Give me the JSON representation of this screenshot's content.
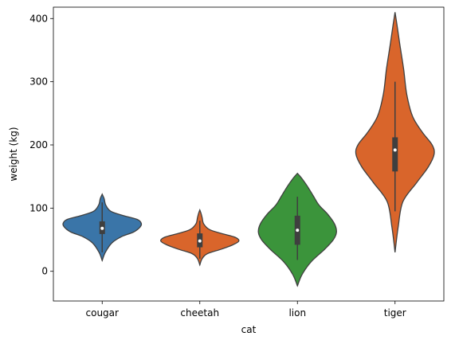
{
  "chart_data": {
    "type": "violin",
    "xlabel": "cat",
    "ylabel": "weight (kg)",
    "ylim": [
      -47,
      418
    ],
    "yticks": [
      0,
      100,
      200,
      300,
      400
    ],
    "categories": [
      "cougar",
      "cheetah",
      "lion",
      "tiger"
    ],
    "violins": [
      {
        "category": "cougar",
        "color": "#3a75a8",
        "min": 17,
        "max": 122,
        "q1": 59,
        "median": 68,
        "q3": 79,
        "whisker_low": 30,
        "whisker_high": 109,
        "density": [
          [
            17,
            0.0
          ],
          [
            30,
            0.08
          ],
          [
            45,
            0.25
          ],
          [
            55,
            0.5
          ],
          [
            62,
            0.8
          ],
          [
            70,
            0.97
          ],
          [
            76,
            1.0
          ],
          [
            82,
            0.9
          ],
          [
            88,
            0.55
          ],
          [
            95,
            0.22
          ],
          [
            105,
            0.09
          ],
          [
            115,
            0.05
          ],
          [
            122,
            0.0
          ]
        ]
      },
      {
        "category": "cheetah",
        "color": "#d9652b",
        "min": 10,
        "max": 97,
        "q1": 38,
        "median": 48,
        "q3": 60,
        "whisker_low": 20,
        "whisker_high": 80,
        "density": [
          [
            10,
            0.0
          ],
          [
            20,
            0.06
          ],
          [
            28,
            0.2
          ],
          [
            35,
            0.55
          ],
          [
            42,
            0.85
          ],
          [
            48,
            1.0
          ],
          [
            54,
            0.9
          ],
          [
            60,
            0.55
          ],
          [
            66,
            0.25
          ],
          [
            75,
            0.1
          ],
          [
            85,
            0.06
          ],
          [
            92,
            0.03
          ],
          [
            97,
            0.0
          ]
        ]
      },
      {
        "category": "lion",
        "color": "#3b943b",
        "min": -23,
        "max": 155,
        "q1": 42,
        "median": 65,
        "q3": 88,
        "whisker_low": 18,
        "whisker_high": 118,
        "density": [
          [
            -23,
            0.0
          ],
          [
            -5,
            0.12
          ],
          [
            15,
            0.35
          ],
          [
            35,
            0.7
          ],
          [
            50,
            0.92
          ],
          [
            62,
            1.0
          ],
          [
            75,
            0.95
          ],
          [
            90,
            0.78
          ],
          [
            105,
            0.55
          ],
          [
            120,
            0.4
          ],
          [
            135,
            0.25
          ],
          [
            148,
            0.1
          ],
          [
            155,
            0.0
          ]
        ]
      },
      {
        "category": "tiger",
        "color": "#d9652b",
        "min": 30,
        "max": 410,
        "q1": 158,
        "median": 192,
        "q3": 212,
        "whisker_low": 95,
        "whisker_high": 300,
        "density": [
          [
            30,
            0.0
          ],
          [
            70,
            0.08
          ],
          [
            110,
            0.2
          ],
          [
            140,
            0.55
          ],
          [
            165,
            0.85
          ],
          [
            185,
            1.0
          ],
          [
            200,
            0.95
          ],
          [
            220,
            0.7
          ],
          [
            245,
            0.45
          ],
          [
            280,
            0.3
          ],
          [
            320,
            0.22
          ],
          [
            360,
            0.12
          ],
          [
            390,
            0.05
          ],
          [
            410,
            0.0
          ]
        ]
      }
    ]
  }
}
